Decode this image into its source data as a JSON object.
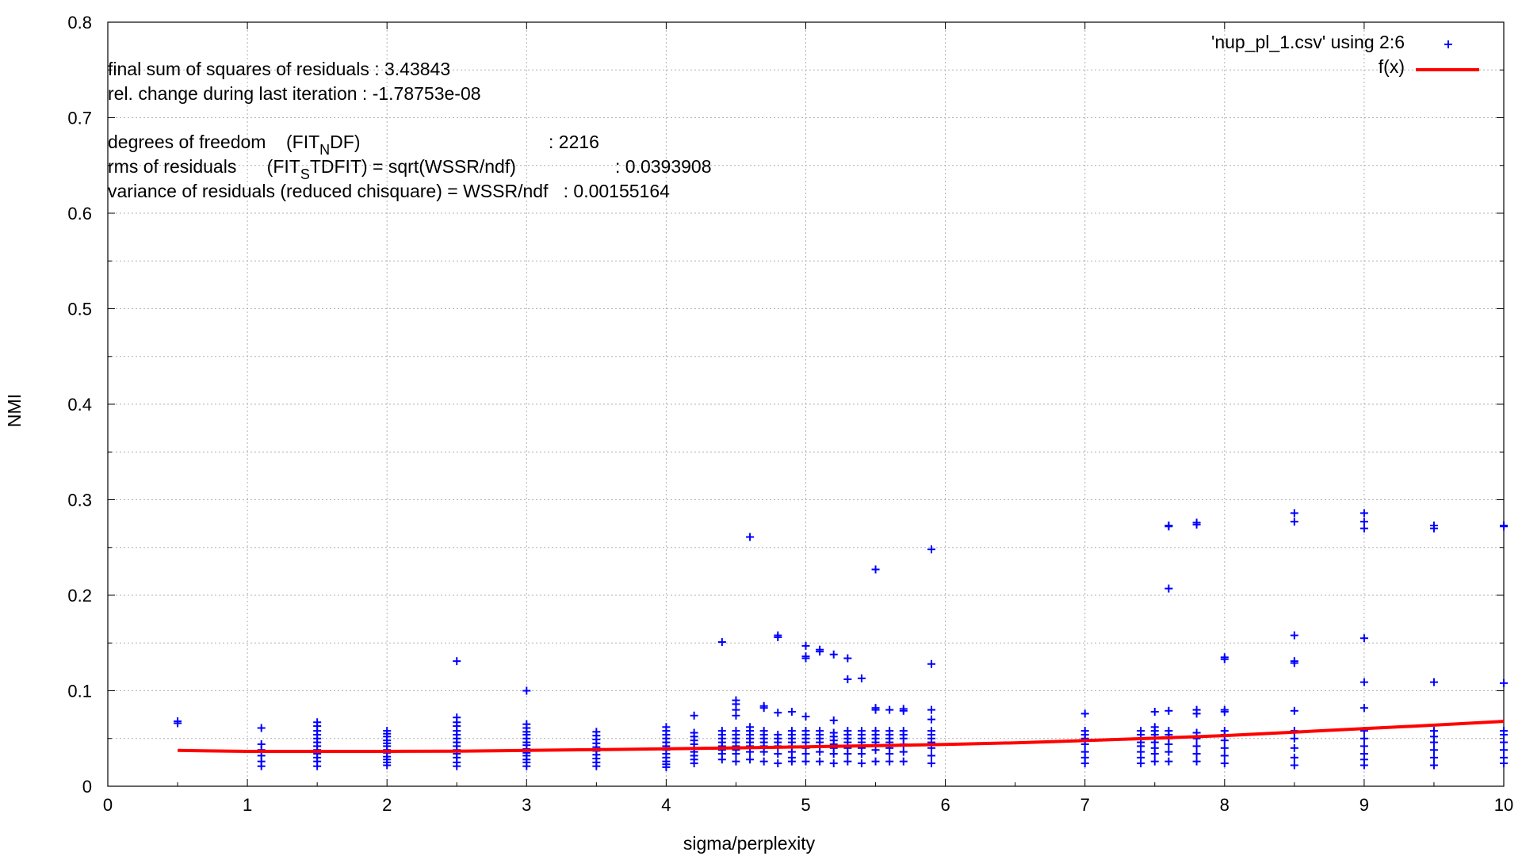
{
  "chart_data": {
    "type": "scatter",
    "title": "",
    "xlabel": "sigma/perplexity",
    "ylabel": "NMI",
    "xlim": [
      0,
      10
    ],
    "ylim": [
      0,
      0.8
    ],
    "grid": true,
    "legend_position": "top-right",
    "x_ticks": [
      "0",
      "1",
      "2",
      "3",
      "4",
      "5",
      "6",
      "7",
      "8",
      "9",
      "10"
    ],
    "y_ticks": [
      "0",
      "0.1",
      "0.2",
      "0.3",
      "0.4",
      "0.5",
      "0.6",
      "0.7",
      "0.8"
    ],
    "series": [
      {
        "name": "'nup_pl_1.csv' using 2:6",
        "type": "scatter",
        "marker": "+",
        "color": "#0000ff",
        "x": [
          0.5,
          0.5,
          1.1,
          1.1,
          1.1,
          1.1,
          1.1,
          1.1,
          1.5,
          1.5,
          1.5,
          1.5,
          1.5,
          1.5,
          1.5,
          1.5,
          1.5,
          1.5,
          1.5,
          1.5,
          2,
          2,
          2,
          2,
          2,
          2,
          2,
          2,
          2,
          2,
          2,
          2,
          2.5,
          2.5,
          2.5,
          2.5,
          2.5,
          2.5,
          2.5,
          2.5,
          2.5,
          2.5,
          2.5,
          2.5,
          2.5,
          2.5,
          3,
          3,
          3,
          3,
          3,
          3,
          3,
          3,
          3,
          3,
          3,
          3,
          3,
          3,
          3.5,
          3.5,
          3.5,
          3.5,
          3.5,
          3.5,
          3.5,
          3.5,
          3.5,
          3.5,
          4,
          4,
          4,
          4,
          4,
          4,
          4,
          4,
          4,
          4,
          4,
          4,
          4.2,
          4.2,
          4.2,
          4.2,
          4.2,
          4.2,
          4.2,
          4.2,
          4.2,
          4.2,
          4.4,
          4.4,
          4.4,
          4.4,
          4.4,
          4.4,
          4.4,
          4.4,
          4.4,
          4.5,
          4.5,
          4.5,
          4.5,
          4.5,
          4.5,
          4.5,
          4.5,
          4.5,
          4.5,
          4.5,
          4.5,
          4.6,
          4.6,
          4.6,
          4.6,
          4.6,
          4.6,
          4.6,
          4.6,
          4.6,
          4.7,
          4.7,
          4.7,
          4.7,
          4.7,
          4.7,
          4.7,
          4.7,
          4.7,
          4.8,
          4.8,
          4.8,
          4.8,
          4.8,
          4.8,
          4.8,
          4.8,
          4.8,
          4.9,
          4.9,
          4.9,
          4.9,
          4.9,
          4.9,
          4.9,
          4.9,
          4.9,
          5,
          5,
          5,
          5,
          5,
          5,
          5,
          5,
          5,
          5,
          5,
          5.1,
          5.1,
          5.1,
          5.1,
          5.1,
          5.1,
          5.1,
          5.1,
          5.1,
          5.2,
          5.2,
          5.2,
          5.2,
          5.2,
          5.2,
          5.2,
          5.2,
          5.2,
          5.3,
          5.3,
          5.3,
          5.3,
          5.3,
          5.3,
          5.3,
          5.3,
          5.3,
          5.4,
          5.4,
          5.4,
          5.4,
          5.4,
          5.4,
          5.4,
          5.4,
          5.5,
          5.5,
          5.5,
          5.5,
          5.5,
          5.5,
          5.5,
          5.5,
          5.5,
          5.6,
          5.6,
          5.6,
          5.6,
          5.6,
          5.6,
          5.6,
          5.6,
          5.7,
          5.7,
          5.7,
          5.7,
          5.7,
          5.7,
          5.7,
          5.7,
          5.9,
          5.9,
          5.9,
          5.9,
          5.9,
          5.9,
          5.9,
          5.9,
          5.9,
          5.9,
          5.9,
          7,
          7,
          7,
          7,
          7,
          7,
          7,
          7,
          7.4,
          7.4,
          7.4,
          7.4,
          7.4,
          7.4,
          7.4,
          7.4,
          7.5,
          7.5,
          7.5,
          7.5,
          7.5,
          7.5,
          7.5,
          7.5,
          7.5,
          7.6,
          7.6,
          7.6,
          7.6,
          7.6,
          7.6,
          7.6,
          7.6,
          7.6,
          7.6,
          7.8,
          7.8,
          7.8,
          7.8,
          7.8,
          7.8,
          7.8,
          7.8,
          7.8,
          8,
          8,
          8,
          8,
          8,
          8,
          8,
          8,
          8,
          8,
          8.5,
          8.5,
          8.5,
          8.5,
          8.5,
          8.5,
          8.5,
          8.5,
          8.5,
          8.5,
          8.5,
          9,
          9,
          9,
          9,
          9,
          9,
          9,
          9,
          9,
          9,
          9,
          9,
          9.5,
          9.5,
          9.5,
          9.5,
          9.5,
          9.5,
          9.5,
          9.5,
          9.5,
          10,
          10,
          10,
          10,
          10,
          10,
          10,
          10,
          10
        ],
        "y": [
          0.068,
          0.066,
          0.061,
          0.044,
          0.038,
          0.032,
          0.026,
          0.021,
          0.067,
          0.063,
          0.058,
          0.054,
          0.05,
          0.046,
          0.042,
          0.038,
          0.034,
          0.03,
          0.026,
          0.021,
          0.058,
          0.055,
          0.052,
          0.048,
          0.045,
          0.042,
          0.038,
          0.035,
          0.031,
          0.028,
          0.025,
          0.022,
          0.131,
          0.072,
          0.067,
          0.063,
          0.058,
          0.054,
          0.05,
          0.046,
          0.042,
          0.038,
          0.034,
          0.03,
          0.025,
          0.021,
          0.1,
          0.065,
          0.061,
          0.057,
          0.054,
          0.05,
          0.046,
          0.043,
          0.039,
          0.035,
          0.032,
          0.028,
          0.025,
          0.021,
          0.057,
          0.053,
          0.049,
          0.045,
          0.041,
          0.037,
          0.033,
          0.029,
          0.025,
          0.021,
          0.062,
          0.058,
          0.054,
          0.05,
          0.046,
          0.042,
          0.038,
          0.034,
          0.03,
          0.026,
          0.023,
          0.02,
          0.074,
          0.056,
          0.052,
          0.048,
          0.044,
          0.04,
          0.036,
          0.032,
          0.028,
          0.024,
          0.151,
          0.058,
          0.054,
          0.05,
          0.046,
          0.042,
          0.038,
          0.034,
          0.028,
          0.09,
          0.086,
          0.08,
          0.074,
          0.058,
          0.054,
          0.05,
          0.046,
          0.042,
          0.038,
          0.034,
          0.026,
          0.261,
          0.062,
          0.058,
          0.054,
          0.05,
          0.046,
          0.042,
          0.036,
          0.028,
          0.084,
          0.082,
          0.058,
          0.054,
          0.05,
          0.046,
          0.042,
          0.036,
          0.026,
          0.158,
          0.156,
          0.077,
          0.054,
          0.05,
          0.046,
          0.042,
          0.034,
          0.024,
          0.078,
          0.058,
          0.054,
          0.05,
          0.046,
          0.042,
          0.036,
          0.03,
          0.026,
          0.147,
          0.136,
          0.134,
          0.073,
          0.058,
          0.054,
          0.05,
          0.046,
          0.04,
          0.034,
          0.026,
          0.143,
          0.141,
          0.058,
          0.054,
          0.05,
          0.046,
          0.042,
          0.036,
          0.026,
          0.138,
          0.069,
          0.056,
          0.052,
          0.048,
          0.044,
          0.04,
          0.034,
          0.024,
          0.134,
          0.112,
          0.058,
          0.054,
          0.05,
          0.046,
          0.04,
          0.034,
          0.026,
          0.113,
          0.058,
          0.054,
          0.05,
          0.046,
          0.04,
          0.034,
          0.024,
          0.227,
          0.082,
          0.08,
          0.058,
          0.054,
          0.05,
          0.046,
          0.038,
          0.026,
          0.08,
          0.058,
          0.054,
          0.05,
          0.046,
          0.04,
          0.034,
          0.026,
          0.081,
          0.079,
          0.058,
          0.054,
          0.05,
          0.044,
          0.036,
          0.026,
          0.248,
          0.128,
          0.08,
          0.07,
          0.058,
          0.054,
          0.05,
          0.046,
          0.04,
          0.032,
          0.024,
          0.076,
          0.058,
          0.054,
          0.05,
          0.044,
          0.036,
          0.03,
          0.024,
          0.058,
          0.054,
          0.05,
          0.046,
          0.042,
          0.036,
          0.03,
          0.024,
          0.078,
          0.062,
          0.058,
          0.054,
          0.05,
          0.046,
          0.04,
          0.034,
          0.026,
          0.273,
          0.272,
          0.207,
          0.079,
          0.058,
          0.054,
          0.05,
          0.044,
          0.036,
          0.026,
          0.276,
          0.274,
          0.08,
          0.076,
          0.056,
          0.05,
          0.042,
          0.034,
          0.026,
          0.135,
          0.133,
          0.08,
          0.078,
          0.058,
          0.054,
          0.048,
          0.04,
          0.032,
          0.024,
          0.286,
          0.277,
          0.158,
          0.131,
          0.129,
          0.079,
          0.058,
          0.05,
          0.04,
          0.03,
          0.022,
          0.286,
          0.277,
          0.27,
          0.155,
          0.109,
          0.082,
          0.058,
          0.05,
          0.042,
          0.034,
          0.028,
          0.022,
          0.273,
          0.27,
          0.109,
          0.058,
          0.052,
          0.046,
          0.038,
          0.03,
          0.022,
          0.273,
          0.272,
          0.108,
          0.058,
          0.054,
          0.046,
          0.038,
          0.03,
          0.024
        ]
      },
      {
        "name": "f(x)",
        "type": "line",
        "color": "#ff0000",
        "x": [
          0.5,
          1,
          1.5,
          2,
          2.5,
          3,
          3.5,
          4,
          4.5,
          5,
          5.5,
          6,
          6.5,
          7,
          7.5,
          8,
          8.5,
          9,
          9.5,
          10
        ],
        "y": [
          0.0375,
          0.0365,
          0.0365,
          0.0365,
          0.0368,
          0.0375,
          0.0383,
          0.0392,
          0.0402,
          0.0413,
          0.0425,
          0.0438,
          0.0455,
          0.0478,
          0.0503,
          0.053,
          0.0567,
          0.0603,
          0.064,
          0.068
        ]
      }
    ],
    "annotations": {
      "final_ssr": "final sum of squares of residuals : 3.43843",
      "rel_change": "rel. change during last iteration : -1.78753e-08",
      "dof_prefix": "degrees of freedom    (FIT",
      "dof_sub": "N",
      "dof_suffix": "DF)",
      "dof_value": ": 2216",
      "rms_prefix": "rms of residuals      (FIT",
      "rms_sub": "S",
      "rms_suffix": "TDFIT) = sqrt(WSSR/ndf)",
      "rms_value": ": 0.0393908",
      "variance": "variance of residuals (reduced chisquare) = WSSR/ndf   : 0.00155164"
    }
  }
}
